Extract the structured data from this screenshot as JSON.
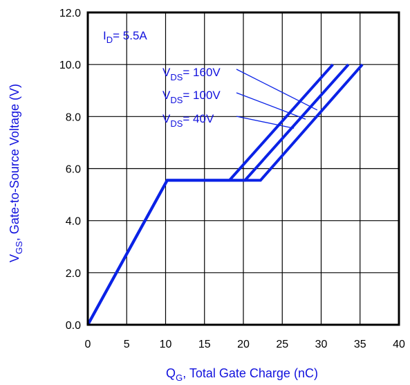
{
  "colors": {
    "series": "#0a22e6",
    "text": "#1111dd",
    "grid": "#000000"
  },
  "chart_data": {
    "type": "line",
    "xlabel": {
      "main": "Q",
      "sub": "G",
      "rest": ",  Total Gate Charge (nC)"
    },
    "ylabel": {
      "main": "V",
      "sub": "GS",
      "rest": ", Gate-to-Source Voltage (V)"
    },
    "xlim": [
      0,
      40
    ],
    "ylim": [
      0,
      12
    ],
    "xticks": [
      0,
      5,
      10,
      15,
      20,
      25,
      30,
      35,
      40
    ],
    "yticks": [
      0,
      2,
      4,
      6,
      8,
      10,
      12
    ],
    "xtick_labels": [
      "0",
      "5",
      "10",
      "15",
      "20",
      "25",
      "30",
      "35",
      "40"
    ],
    "ytick_labels": [
      "0.0",
      "2.0",
      "4.0",
      "6.0",
      "8.0",
      "10.0",
      "12.0"
    ],
    "grid": true,
    "annotation": {
      "main": "I",
      "sub": "D",
      "rest": "= 5.5A"
    },
    "series": [
      {
        "name": "V_DS = 160V",
        "label": {
          "main": "V",
          "sub": "DS",
          "rest": "= 160V"
        },
        "points": [
          [
            0,
            0
          ],
          [
            10.2,
            5.55
          ],
          [
            18.2,
            5.55
          ],
          [
            31.5,
            10.0
          ]
        ]
      },
      {
        "name": "V_DS = 100V",
        "label": {
          "main": "V",
          "sub": "DS",
          "rest": "= 100V"
        },
        "points": [
          [
            0,
            0
          ],
          [
            10.2,
            5.55
          ],
          [
            20.2,
            5.55
          ],
          [
            33.5,
            10.0
          ]
        ]
      },
      {
        "name": "V_DS = 40V",
        "label": {
          "main": "V",
          "sub": "DS",
          "rest": "= 40V"
        },
        "points": [
          [
            0,
            0
          ],
          [
            10.2,
            5.55
          ],
          [
            22.2,
            5.55
          ],
          [
            35.3,
            10.0
          ]
        ]
      }
    ],
    "label_arrows_to": [
      [
        29.5,
        8.25
      ],
      [
        28.0,
        7.9
      ],
      [
        26.5,
        7.55
      ]
    ]
  }
}
